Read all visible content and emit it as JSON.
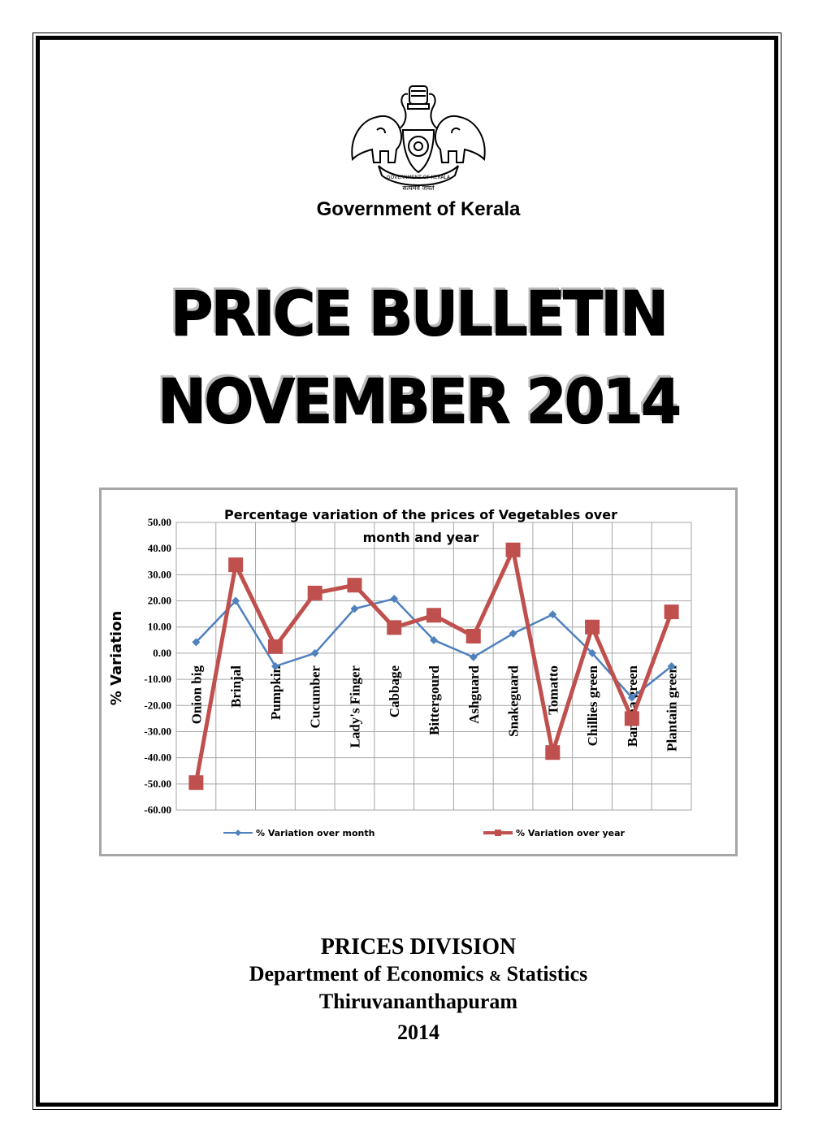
{
  "header": {
    "government": "Government of Kerala",
    "emblem_motto": "सत्यमेव जयते",
    "emblem_text": "GOVERNMENT OF KERALA"
  },
  "title": {
    "line1": "PRICE BULLETIN",
    "line2": "NOVEMBER 2014"
  },
  "footer": {
    "division": "PRICES DIVISION",
    "dept_part1": "Department of Economics",
    "dept_amp": "&",
    "dept_part2": "Statistics",
    "city": "Thiruvananthapuram",
    "year": "2014"
  },
  "chart_data": {
    "type": "line",
    "title": "Percentage variation of the prices of Vegetables over month and year",
    "title_line1": "Percentage variation of the prices of Vegetables over",
    "title_line2": "month and year",
    "ylabel": "% Variation",
    "xlabel": "",
    "ylim": [
      -60,
      50
    ],
    "yticks": [
      "50.00",
      "40.00",
      "30.00",
      "20.00",
      "10.00",
      "0.00",
      "-10.00",
      "-20.00",
      "-30.00",
      "-40.00",
      "-50.00",
      "-60.00"
    ],
    "grid": true,
    "legend_position": "bottom",
    "categories": [
      "Onion big",
      "Brinjal",
      "Pumpkin",
      "Cucumber",
      "Lady's Finger",
      "Cabbage",
      "Bittergourd",
      "Ashguard",
      "Snakeguard",
      "Tomatto",
      "Chillies green",
      "Banana green",
      "Plantain green"
    ],
    "series": [
      {
        "name": "%  Variation over month",
        "color": "#4f81bd",
        "marker": "diamond",
        "values": [
          4.2,
          20.0,
          -5.0,
          0.0,
          17.0,
          20.8,
          5.0,
          -1.5,
          7.5,
          14.8,
          0.0,
          -17.0,
          -5.0
        ]
      },
      {
        "name": "%  Variation over year",
        "color": "#c0504d",
        "marker": "square",
        "values": [
          -49.5,
          33.8,
          2.5,
          23.0,
          26.0,
          9.8,
          14.5,
          6.5,
          39.5,
          -38.0,
          10.0,
          -25.0,
          15.8
        ]
      }
    ]
  }
}
